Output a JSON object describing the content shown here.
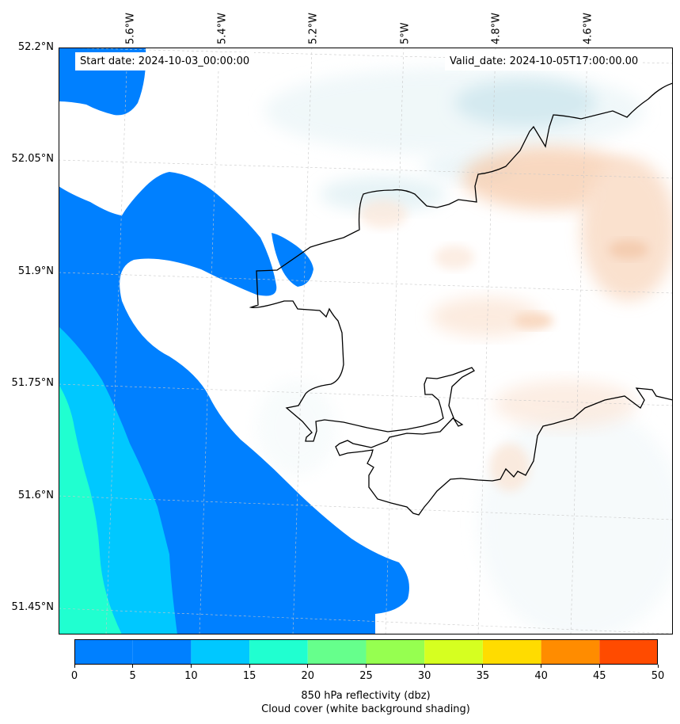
{
  "map": {
    "start_date": "Start date: 2024-10-03_00:00:00",
    "valid_date": "Valid_date: 2024-10-05T17:00:00.00",
    "lon_labels": [
      "5.6°W",
      "5.4°W",
      "5.2°W",
      "5°W",
      "4.8°W",
      "4.6°W"
    ],
    "lat_labels": [
      "52.2°N",
      "52.05°N",
      "51.9°N",
      "51.75°N",
      "51.6°N",
      "51.45°N"
    ],
    "colors": {
      "land_outline": "#000000",
      "reflectivity_blue": "#0080ff",
      "reflectivity_cyan": "#00c8ff",
      "reflectivity_aqua": "#20ffd0",
      "warm_shading": "#f6c8a6",
      "cool_shading": "#b8dce6"
    }
  },
  "colorbar": {
    "ticks": [
      "0",
      "5",
      "10",
      "15",
      "20",
      "25",
      "30",
      "35",
      "40",
      "45",
      "50"
    ],
    "bands": [
      {
        "from": 5,
        "to": 10,
        "color": "#0080ff"
      },
      {
        "from": 10,
        "to": 15,
        "color": "#00c8ff"
      },
      {
        "from": 15,
        "to": 20,
        "color": "#20ffd0"
      },
      {
        "from": 20,
        "to": 25,
        "color": "#66ff8c"
      },
      {
        "from": 25,
        "to": 30,
        "color": "#96ff50"
      },
      {
        "from": 30,
        "to": 35,
        "color": "#d6ff20"
      },
      {
        "from": 35,
        "to": 40,
        "color": "#ffdc00"
      },
      {
        "from": 40,
        "to": 45,
        "color": "#ff8c00"
      },
      {
        "from": 45,
        "to": 50,
        "color": "#ff4b00"
      }
    ],
    "label_line1": "850 hPa reflectivity (dbz)",
    "label_line2": "Cloud cover (white background shading)"
  }
}
